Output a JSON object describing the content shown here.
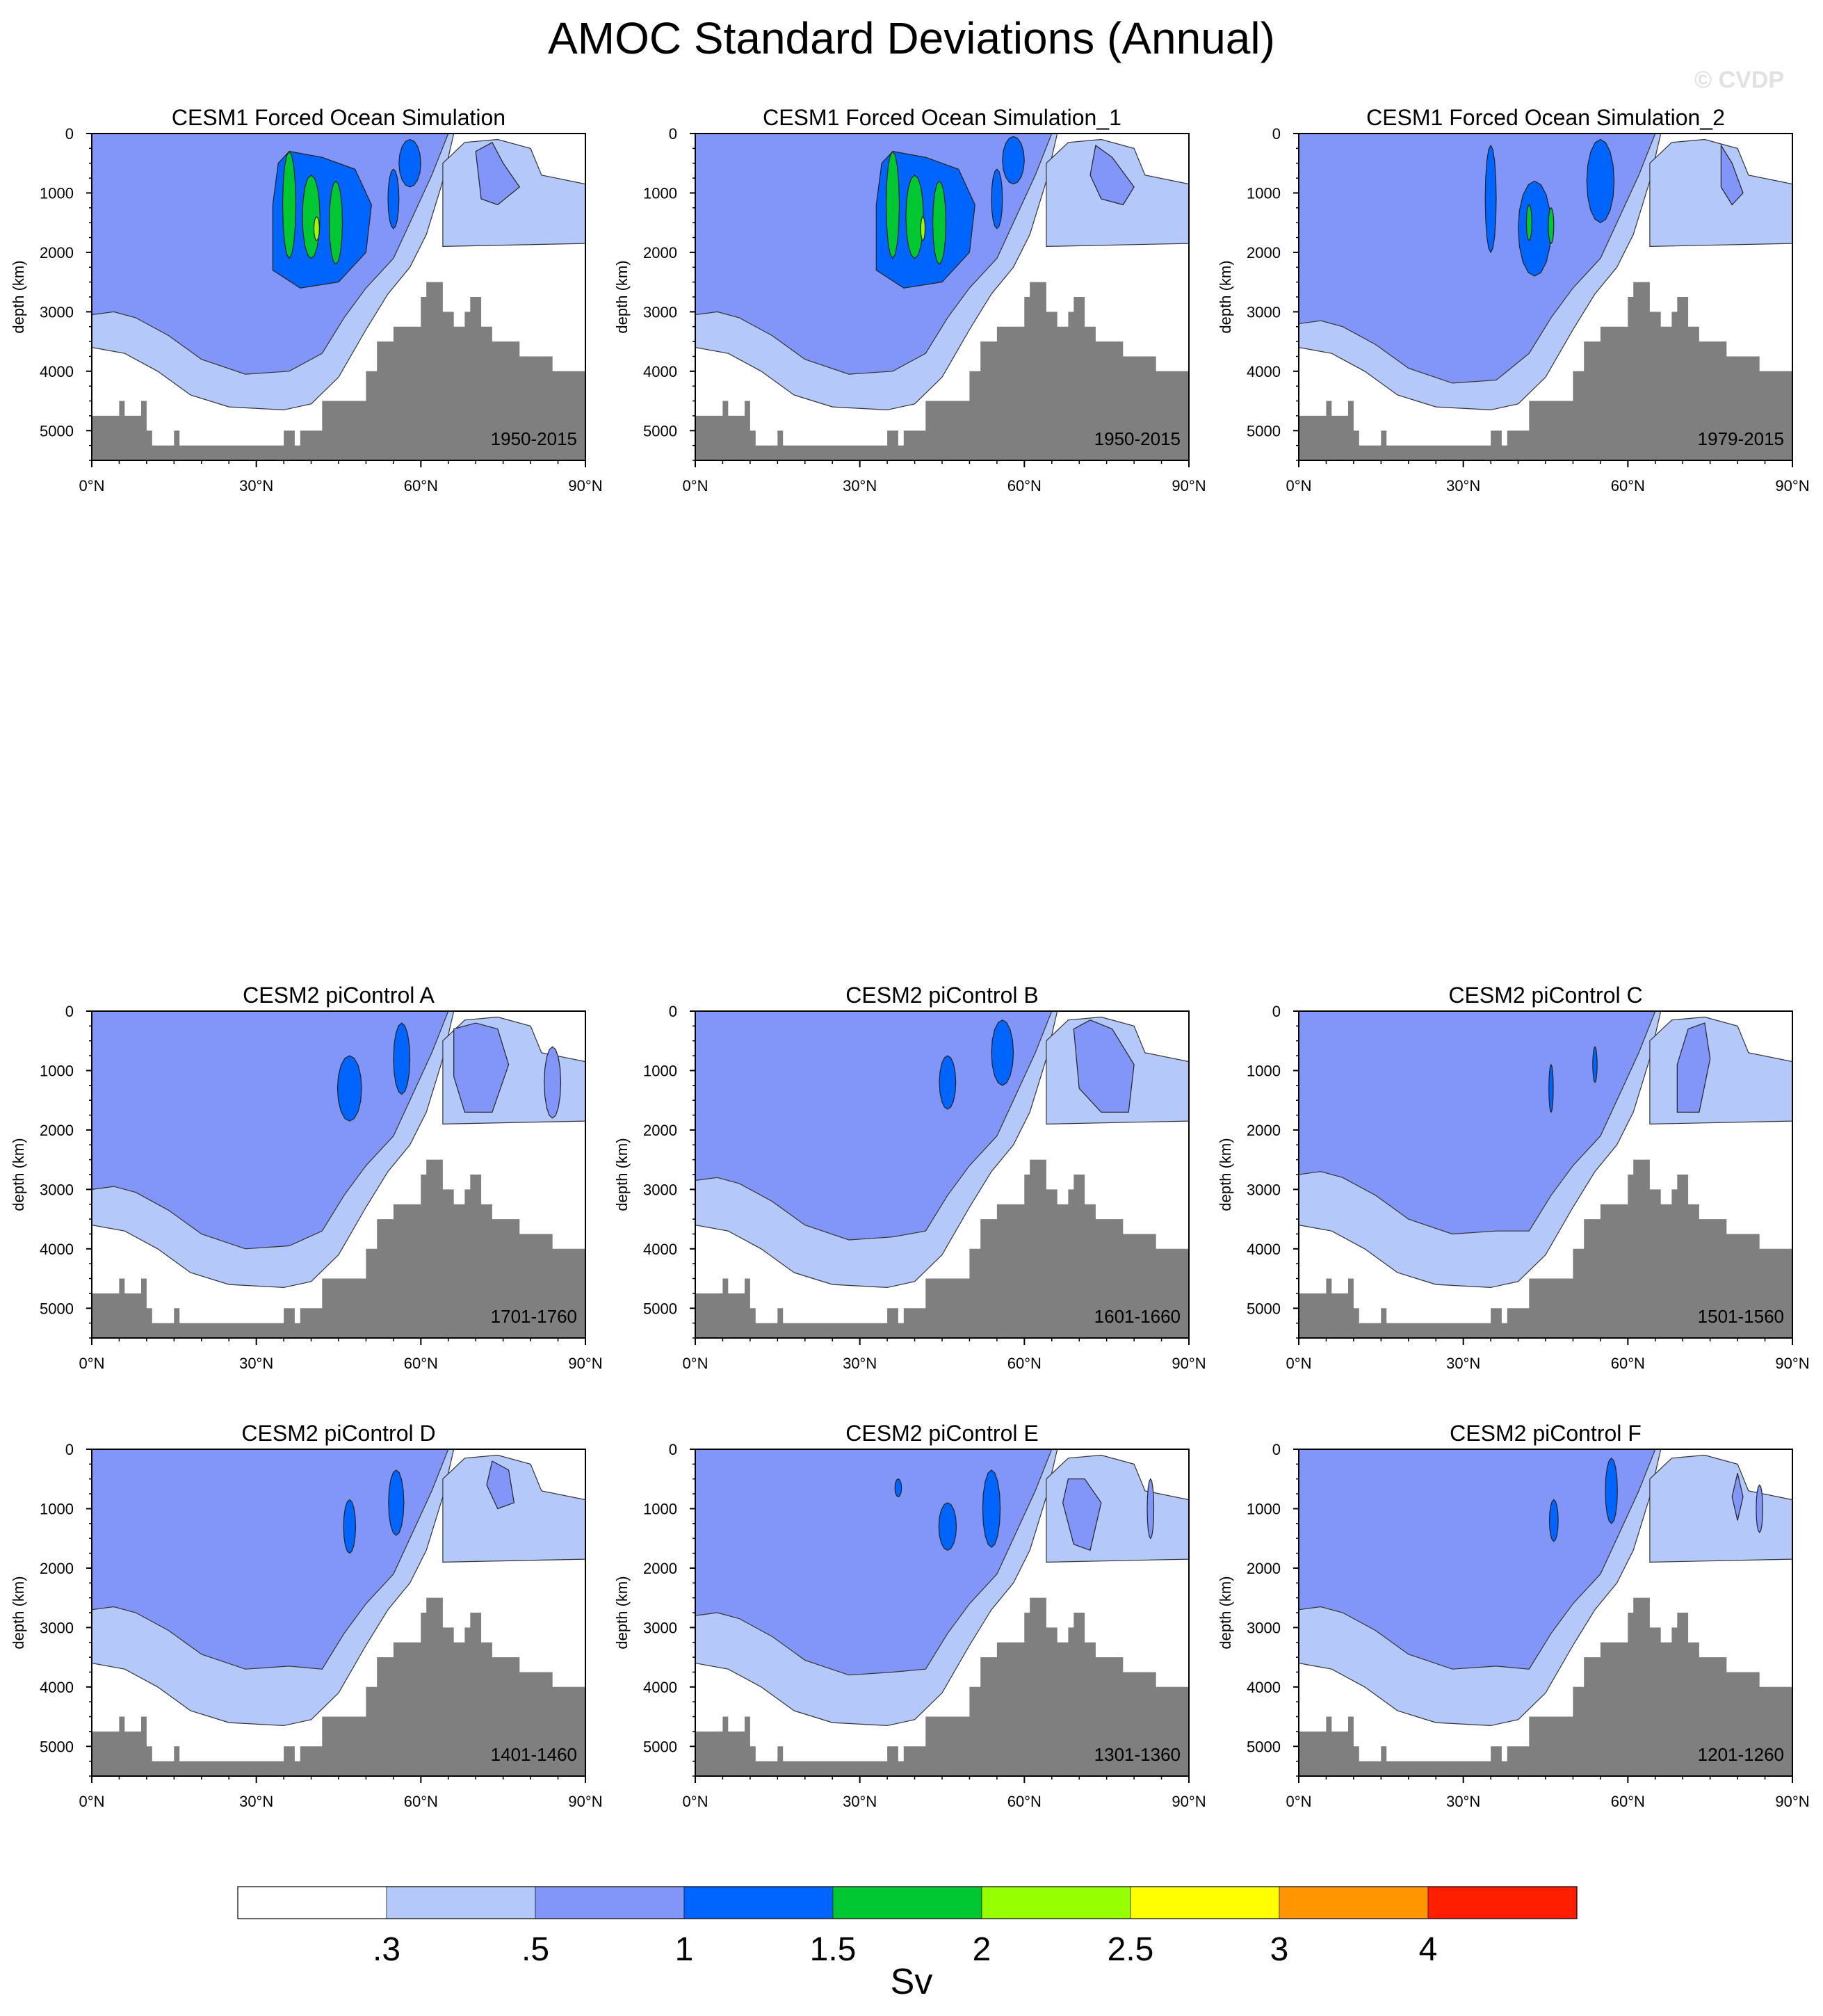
{
  "figure": {
    "title": "AMOC Standard Deviations (Annual)",
    "watermark": "© CVDP",
    "colorbar": {
      "labels": [
        ".3",
        ".5",
        "1",
        "1.5",
        "2",
        "2.5",
        "3",
        "4"
      ],
      "colors": [
        "#ffffff",
        "#b4c8fa",
        "#8296fa",
        "#0064ff",
        "#00c832",
        "#96ff00",
        "#ffff00",
        "#ff9600",
        "#ff1e00"
      ],
      "unit": "Sv"
    },
    "bathymetry_color": "#7f7f7f"
  },
  "chart_data": [
    {
      "type": "heatmap",
      "title": "CESM1 Forced Ocean Simulation",
      "period": "1950-2015",
      "ylabel": "depth (km)",
      "xlim": [
        0,
        90
      ],
      "ylim": [
        5500,
        0
      ],
      "xticklabels": [
        "0°N",
        "30°N",
        "60°N",
        "90°N"
      ],
      "yticklabels": [
        "0",
        "1000",
        "2000",
        "3000",
        "4000",
        "5000"
      ],
      "max_level": 2.5
    },
    {
      "type": "heatmap",
      "title": "CESM1 Forced Ocean Simulation_1",
      "period": "1950-2015",
      "ylabel": "depth (km)",
      "xlim": [
        0,
        90
      ],
      "ylim": [
        5500,
        0
      ],
      "xticklabels": [
        "0°N",
        "30°N",
        "60°N",
        "90°N"
      ],
      "yticklabels": [
        "0",
        "1000",
        "2000",
        "3000",
        "4000",
        "5000"
      ],
      "max_level": 2.5
    },
    {
      "type": "heatmap",
      "title": "CESM1 Forced Ocean Simulation_2",
      "period": "1979-2015",
      "ylabel": "depth (km)",
      "xlim": [
        0,
        90
      ],
      "ylim": [
        5500,
        0
      ],
      "xticklabels": [
        "0°N",
        "30°N",
        "60°N",
        "90°N"
      ],
      "yticklabels": [
        "0",
        "1000",
        "2000",
        "3000",
        "4000",
        "5000"
      ],
      "max_level": 1.5
    },
    {
      "type": "heatmap",
      "title": "CESM2 piControl A",
      "period": "1701-1760",
      "ylabel": "depth (km)",
      "xlim": [
        0,
        90
      ],
      "ylim": [
        5500,
        0
      ],
      "xticklabels": [
        "0°N",
        "30°N",
        "60°N",
        "90°N"
      ],
      "yticklabels": [
        "0",
        "1000",
        "2000",
        "3000",
        "4000",
        "5000"
      ],
      "max_level": 1
    },
    {
      "type": "heatmap",
      "title": "CESM2 piControl B",
      "period": "1601-1660",
      "ylabel": "depth (km)",
      "xlim": [
        0,
        90
      ],
      "ylim": [
        5500,
        0
      ],
      "xticklabels": [
        "0°N",
        "30°N",
        "60°N",
        "90°N"
      ],
      "yticklabels": [
        "0",
        "1000",
        "2000",
        "3000",
        "4000",
        "5000"
      ],
      "max_level": 1
    },
    {
      "type": "heatmap",
      "title": "CESM2 piControl C",
      "period": "1501-1560",
      "ylabel": "depth (km)",
      "xlim": [
        0,
        90
      ],
      "ylim": [
        5500,
        0
      ],
      "xticklabels": [
        "0°N",
        "30°N",
        "60°N",
        "90°N"
      ],
      "yticklabels": [
        "0",
        "1000",
        "2000",
        "3000",
        "4000",
        "5000"
      ],
      "max_level": 1
    },
    {
      "type": "heatmap",
      "title": "CESM2 piControl D",
      "period": "1401-1460",
      "ylabel": "depth (km)",
      "xlim": [
        0,
        90
      ],
      "ylim": [
        5500,
        0
      ],
      "xticklabels": [
        "0°N",
        "30°N",
        "60°N",
        "90°N"
      ],
      "yticklabels": [
        "0",
        "1000",
        "2000",
        "3000",
        "4000",
        "5000"
      ],
      "max_level": 1
    },
    {
      "type": "heatmap",
      "title": "CESM2 piControl E",
      "period": "1301-1360",
      "ylabel": "depth (km)",
      "xlim": [
        0,
        90
      ],
      "ylim": [
        5500,
        0
      ],
      "xticklabels": [
        "0°N",
        "30°N",
        "60°N",
        "90°N"
      ],
      "yticklabels": [
        "0",
        "1000",
        "2000",
        "3000",
        "4000",
        "5000"
      ],
      "max_level": 1
    },
    {
      "type": "heatmap",
      "title": "CESM2 piControl F",
      "period": "1201-1260",
      "ylabel": "depth (km)",
      "xlim": [
        0,
        90
      ],
      "ylim": [
        5500,
        0
      ],
      "xticklabels": [
        "0°N",
        "30°N",
        "60°N",
        "90°N"
      ],
      "yticklabels": [
        "0",
        "1000",
        "2000",
        "3000",
        "4000",
        "5000"
      ],
      "max_level": 1
    }
  ]
}
